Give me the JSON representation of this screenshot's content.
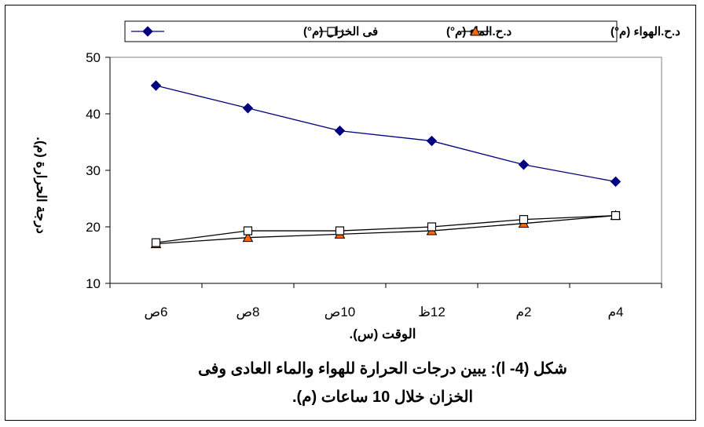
{
  "chart_data": {
    "type": "line",
    "categories": [
      "6ص",
      "8ص",
      "10ص",
      "12ظ",
      "2م",
      "4م"
    ],
    "series": [
      {
        "name": "فى الخزان (م°)",
        "values": [
          45,
          41,
          37,
          35.2,
          31,
          28
        ],
        "color": "#000080",
        "marker": "diamond"
      },
      {
        "name": "د.ح.الماء (م°)",
        "values": [
          17.2,
          19.3,
          19.3,
          20,
          21.3,
          22
        ],
        "color": "#000000",
        "marker": "square-open"
      },
      {
        "name": "د.ح.الهواء (م°)",
        "values": [
          17,
          18.1,
          18.7,
          19.3,
          20.6,
          22
        ],
        "color": "#000000",
        "marker": "triangle-orange"
      }
    ],
    "ylim": [
      10,
      50
    ],
    "yticks": [
      10,
      20,
      30,
      40,
      50
    ],
    "ylabel": "درجة الحرارة (م).",
    "xlabel": "الوقت (س).",
    "grid": false,
    "legend_position": "top"
  },
  "caption": {
    "line1": "شكل (4- ا): يبين درجات الحرارة للهواء والماء العادى وفى",
    "line2": "الخزان خلال 10 ساعات (م)."
  },
  "colors": {
    "marker_orange": "#ff6600",
    "tank_line": "#000080"
  }
}
